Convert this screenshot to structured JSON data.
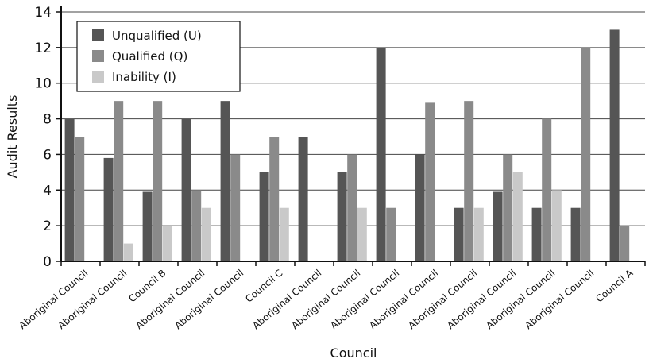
{
  "chart_data": {
    "type": "bar",
    "categories": [
      "Aboriginal Council",
      "Aboriginal Council",
      "Council B",
      "Aboriginal Council",
      "Aboriginal Council",
      "Council C",
      "Aboriginal Council",
      "Aboriginal Council",
      "Aboriginal Council",
      "Aboriginal Council",
      "Aboriginal Council",
      "Aboriginal Council",
      "Aboriginal Council",
      "Aboriginal Council",
      "Council A"
    ],
    "series": [
      {
        "name": "Unqualified (U)",
        "color": "#555555",
        "values": [
          8,
          5.8,
          3.9,
          8,
          9,
          5,
          7,
          5,
          12,
          6,
          3,
          3.9,
          3,
          3,
          13
        ]
      },
      {
        "name": "Qualified (Q)",
        "color": "#8a8a8a",
        "values": [
          7,
          9,
          9,
          4,
          6,
          7,
          0,
          6,
          3,
          8.9,
          9,
          6,
          8,
          12,
          2
        ]
      },
      {
        "name": "Inability (I)",
        "color": "#c9c9c9",
        "values": [
          0,
          1,
          2,
          3,
          0,
          3,
          0,
          3,
          0,
          0,
          3,
          5,
          4,
          0,
          0
        ]
      }
    ],
    "xlabel": "Council",
    "ylabel": "Audit Results",
    "ylim": [
      0,
      14
    ],
    "yticks": [
      "0",
      "2",
      "4",
      "6",
      "8",
      "10",
      "12",
      "14"
    ],
    "grid": true,
    "legend_position": "top-left"
  }
}
